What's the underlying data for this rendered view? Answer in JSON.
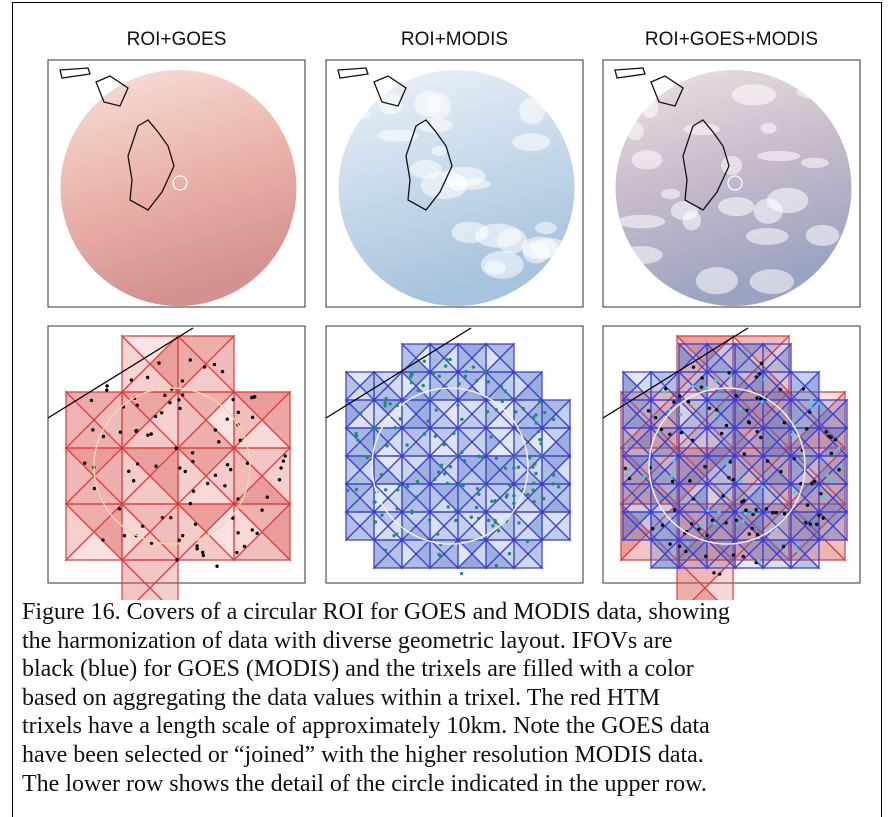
{
  "figure": {
    "panel_titles": [
      "ROI+GOES",
      "ROI+MODIS",
      "ROI+GOES+MODIS"
    ],
    "caption_lines": [
      "Figure 16. Covers of a circular ROI for GOES and MODIS data, showing",
      "the harmonization of data with diverse geometric layout. IFOVs are",
      "black (blue) for GOES (MODIS) and the trixels are filled with a color",
      "based on aggregating the data values within a trixel. The red HTM",
      "trixels have a length scale of approximately 10km. Note the GOES data",
      "have been selected or “joined” with the higher resolution MODIS data.",
      "The lower row shows the detail of the circle indicated in the upper row."
    ]
  }
}
